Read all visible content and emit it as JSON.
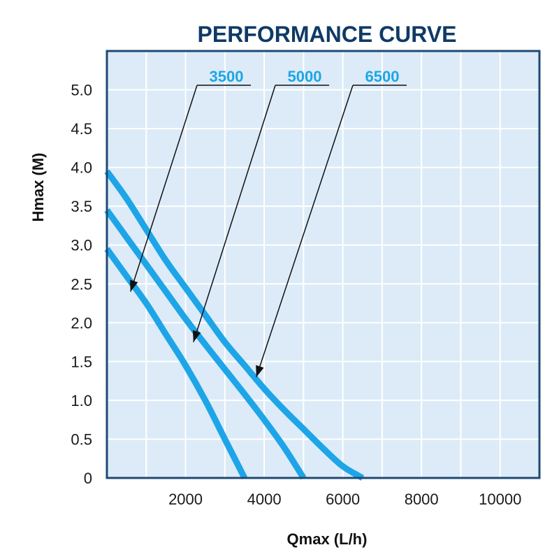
{
  "chart_data": {
    "type": "line",
    "title": "PERFORMANCE CURVE",
    "xlabel": "Qmax (L/h)",
    "ylabel": "Hmax (M)",
    "xlim": [
      0,
      11000
    ],
    "ylim": [
      0,
      5.5
    ],
    "x_ticks": [
      2000,
      4000,
      6000,
      8000,
      10000
    ],
    "x_tick_labels": [
      "2000",
      "4000",
      "6000",
      "8000",
      "10000"
    ],
    "y_ticks": [
      0,
      0.5,
      1.0,
      1.5,
      2.0,
      2.5,
      3.0,
      3.5,
      4.0,
      4.5,
      5.0
    ],
    "y_tick_labels": [
      "0",
      "0.5",
      "1.0",
      "1.5",
      "2.0",
      "2.5",
      "3.0",
      "3.5",
      "4.0",
      "4.5",
      "5.0"
    ],
    "grid": true,
    "series": [
      {
        "name": "3500",
        "points": [
          [
            0,
            2.95
          ],
          [
            500,
            2.6
          ],
          [
            1000,
            2.25
          ],
          [
            1500,
            1.85
          ],
          [
            2000,
            1.45
          ],
          [
            2500,
            1.0
          ],
          [
            3000,
            0.5
          ],
          [
            3500,
            0.0
          ]
        ]
      },
      {
        "name": "5000",
        "points": [
          [
            0,
            3.45
          ],
          [
            500,
            3.1
          ],
          [
            1000,
            2.75
          ],
          [
            1500,
            2.4
          ],
          [
            2000,
            2.05
          ],
          [
            2500,
            1.72
          ],
          [
            3000,
            1.4
          ],
          [
            3500,
            1.08
          ],
          [
            4000,
            0.75
          ],
          [
            4500,
            0.4
          ],
          [
            5000,
            0.0
          ]
        ]
      },
      {
        "name": "6500",
        "points": [
          [
            0,
            3.95
          ],
          [
            500,
            3.6
          ],
          [
            1000,
            3.2
          ],
          [
            1500,
            2.8
          ],
          [
            2000,
            2.45
          ],
          [
            2500,
            2.1
          ],
          [
            3000,
            1.75
          ],
          [
            3500,
            1.45
          ],
          [
            4000,
            1.15
          ],
          [
            4500,
            0.88
          ],
          [
            5000,
            0.63
          ],
          [
            5500,
            0.38
          ],
          [
            6000,
            0.15
          ],
          [
            6500,
            0.0
          ]
        ]
      }
    ],
    "annotations": [
      {
        "series": "3500",
        "arrow_target": [
          600,
          2.4
        ]
      },
      {
        "series": "5000",
        "arrow_target": [
          2200,
          1.75
        ]
      },
      {
        "series": "6500",
        "arrow_target": [
          3800,
          1.3
        ]
      }
    ],
    "colors": {
      "curve": "#1ea5e8",
      "label": "#1ea5e8",
      "plot_bg": "#dcebf7",
      "grid": "#ffffff",
      "border": "#1e4a74",
      "title": "#0f3a66",
      "arrow": "#111111"
    }
  }
}
